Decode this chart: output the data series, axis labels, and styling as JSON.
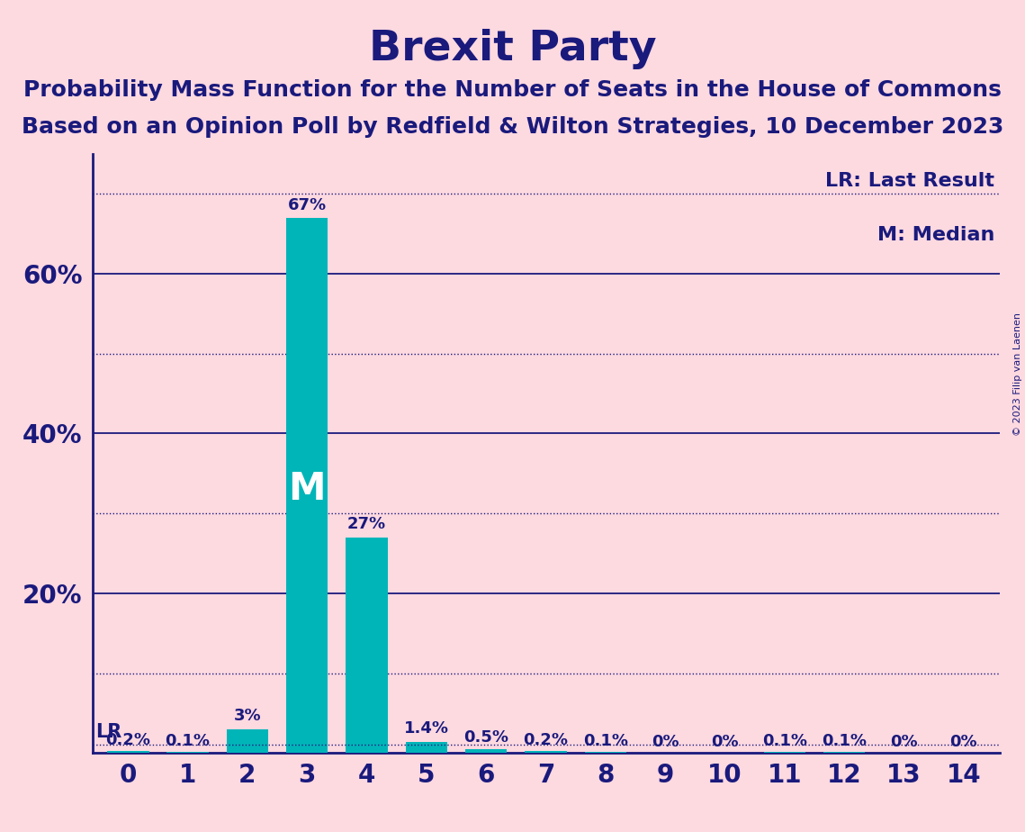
{
  "title": "Brexit Party",
  "subtitle_line1": "Probability Mass Function for the Number of Seats in the House of Commons",
  "subtitle_line2": "Based on an Opinion Poll by Redfield & Wilton Strategies, 10 December 2023",
  "copyright": "© 2023 Filip van Laenen",
  "categories": [
    0,
    1,
    2,
    3,
    4,
    5,
    6,
    7,
    8,
    9,
    10,
    11,
    12,
    13,
    14
  ],
  "values": [
    0.2,
    0.1,
    3.0,
    67.0,
    27.0,
    1.4,
    0.5,
    0.2,
    0.1,
    0.0,
    0.0,
    0.1,
    0.1,
    0.0,
    0.0
  ],
  "bar_labels": [
    "0.2%",
    "0.1%",
    "3%",
    "67%",
    "27%",
    "1.4%",
    "0.5%",
    "0.2%",
    "0.1%",
    "0%",
    "0%",
    "0.1%",
    "0.1%",
    "0%",
    "0%"
  ],
  "bar_color": "#00B5B8",
  "background_color": "#FDD9E0",
  "text_color": "#1a1a7c",
  "title_fontsize": 34,
  "subtitle_fontsize": 18,
  "solid_lines": [
    20,
    40,
    60
  ],
  "dotted_lines": [
    10,
    30,
    50,
    70
  ],
  "lr_value": 1.0,
  "median_seat": 3,
  "legend_lr": "LR: Last Result",
  "legend_m": "M: Median",
  "ylim": [
    0,
    75
  ],
  "bar_label_fontsize": 13,
  "tick_fontsize": 20
}
